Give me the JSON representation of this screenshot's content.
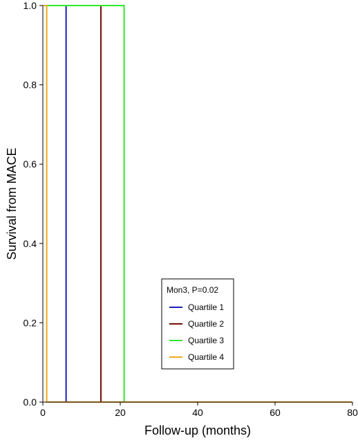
{
  "chart_data": {
    "type": "line",
    "title": "",
    "xlabel": "Follow-up (months)",
    "ylabel": "Survival from MACE",
    "xlim": [
      0,
      80
    ],
    "ylim": [
      0,
      1.0
    ],
    "x_ticks": [
      0,
      20,
      40,
      60,
      80
    ],
    "y_ticks": [
      0.0,
      0.2,
      0.4,
      0.6,
      0.8,
      1.0
    ],
    "x_tick_labels": [
      "0",
      "20",
      "40",
      "60",
      "80"
    ],
    "y_tick_labels": [
      "0.0",
      "0.2",
      "0.4",
      "0.6",
      "0.8",
      "1.0"
    ],
    "grid": false,
    "legend": {
      "title": "Mon3, P=0.02",
      "placement": "bottom-center"
    },
    "series": [
      {
        "name": "Quartile 1",
        "color": "#1c1cb8",
        "x": [
          0,
          6,
          6,
          80
        ],
        "y": [
          1.0,
          1.0,
          0.0,
          0.0
        ]
      },
      {
        "name": "Quartile 2",
        "color": "#7a0c0c",
        "x": [
          0,
          15,
          15,
          78,
          78
        ],
        "y": [
          1.0,
          1.0,
          0.0,
          0.0,
          0.0
        ]
      },
      {
        "name": "Quartile 3",
        "color": "#2ee82e",
        "x": [
          0,
          21,
          21,
          80
        ],
        "y": [
          1.0,
          1.0,
          0.0,
          0.0
        ]
      },
      {
        "name": "Quartile 4",
        "color": "#f0a820",
        "x": [
          0,
          1,
          1,
          80
        ],
        "y": [
          1.0,
          1.0,
          0.0,
          0.0
        ]
      }
    ]
  }
}
